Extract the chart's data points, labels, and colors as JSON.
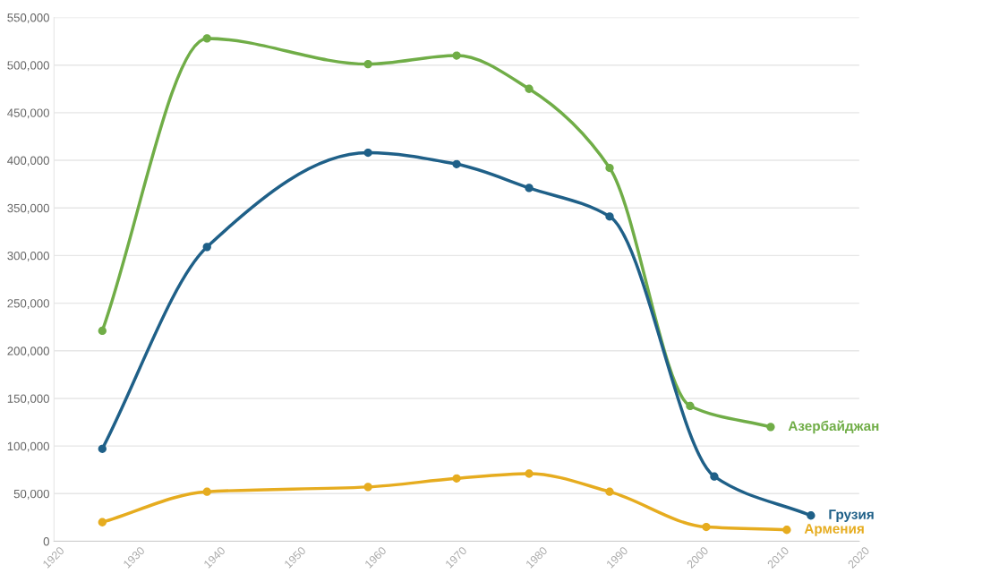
{
  "chart_data": {
    "type": "line",
    "series": [
      {
        "name": "Азербайджан",
        "color": "#70ad47",
        "x": [
          1926,
          1939,
          1959,
          1970,
          1979,
          1989,
          1999,
          2009
        ],
        "values": [
          221000,
          528000,
          501000,
          510000,
          475000,
          392000,
          142000,
          120000
        ]
      },
      {
        "name": "Грузия",
        "color": "#1f6088",
        "x": [
          1926,
          1939,
          1959,
          1970,
          1979,
          1989,
          2002,
          2014
        ],
        "values": [
          97000,
          309000,
          408000,
          396000,
          371000,
          341000,
          68000,
          27000
        ]
      },
      {
        "name": "Армения",
        "color": "#e6ac1f",
        "x": [
          1926,
          1939,
          1959,
          1970,
          1979,
          1989,
          2001,
          2011
        ],
        "values": [
          20000,
          52000,
          57000,
          66000,
          71000,
          52000,
          15000,
          12000
        ]
      }
    ],
    "xlim": [
      1920,
      2020
    ],
    "xticks": [
      1920,
      1930,
      1940,
      1950,
      1960,
      1970,
      1980,
      1990,
      2000,
      2010,
      2020
    ],
    "ylim": [
      0,
      550000
    ],
    "yticks": [
      {
        "value": 0,
        "label": "0"
      },
      {
        "value": 50000,
        "label": "50,000"
      },
      {
        "value": 100000,
        "label": "100,000"
      },
      {
        "value": 150000,
        "label": "150,000"
      },
      {
        "value": 200000,
        "label": "200,000"
      },
      {
        "value": 250000,
        "label": "250,000"
      },
      {
        "value": 300000,
        "label": "300,000"
      },
      {
        "value": 350000,
        "label": "350,000"
      },
      {
        "value": 400000,
        "label": "400,000"
      },
      {
        "value": 450000,
        "label": "450,000"
      },
      {
        "value": 500000,
        "label": "500,000"
      },
      {
        "value": 550000,
        "label": "550,000"
      }
    ],
    "grid": "y",
    "marker": "circle",
    "line_style": "solid",
    "legend": false
  }
}
